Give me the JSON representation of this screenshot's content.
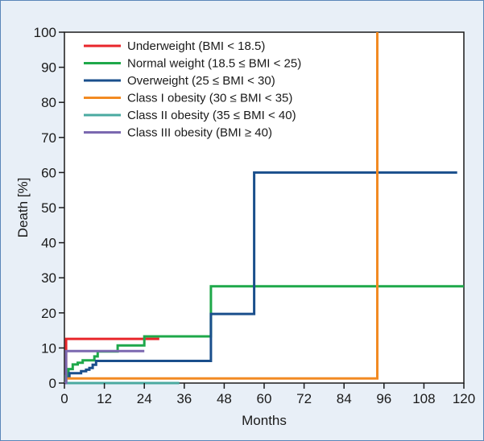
{
  "chart_data": {
    "type": "line",
    "step": true,
    "xlabel": "Months",
    "ylabel": "Death [%]",
    "xlim": [
      0,
      120
    ],
    "ylim": [
      0,
      100
    ],
    "xticks": [
      0,
      12,
      24,
      36,
      48,
      60,
      72,
      84,
      96,
      108,
      120
    ],
    "yticks": [
      0,
      10,
      20,
      30,
      40,
      50,
      60,
      70,
      80,
      90,
      100
    ],
    "grid": false,
    "legend_position": "top-left",
    "series": [
      {
        "name": "Underweight (BMI < 18.5)",
        "color": "#e8262b",
        "x": [
          0,
          0.5,
          0.5,
          24,
          24,
          28.5
        ],
        "y": [
          0,
          0,
          12.6,
          12.6,
          12.6,
          12.6
        ]
      },
      {
        "name": "Normal weight (18.5 ≤ BMI < 25)",
        "color": "#1ea84a",
        "x": [
          0,
          0.4,
          0.4,
          1.2,
          1.2,
          2.5,
          2.5,
          4,
          4,
          5.5,
          5.5,
          9,
          9,
          10,
          10,
          16,
          16,
          24,
          24,
          44,
          44,
          120
        ],
        "y": [
          0,
          0,
          2,
          2,
          4,
          4,
          5.3,
          5.3,
          5.8,
          5.8,
          6.5,
          6.5,
          7.6,
          7.6,
          9,
          9,
          10.7,
          10.7,
          13.3,
          13.3,
          27.6,
          27.6
        ]
      },
      {
        "name": "Overweight (25 ≤ BMI < 30)",
        "color": "#1a4f8c",
        "x": [
          0,
          0.5,
          0.5,
          1.5,
          1.5,
          5,
          5,
          6.5,
          6.5,
          7.5,
          7.5,
          8.5,
          8.5,
          9.5,
          9.5,
          44,
          44,
          57,
          57,
          118
        ],
        "y": [
          0,
          0,
          1.5,
          1.5,
          2.8,
          2.8,
          3.4,
          3.4,
          3.8,
          3.8,
          4.3,
          4.3,
          5.2,
          5.2,
          6.3,
          6.3,
          19.7,
          19.7,
          60,
          60
        ]
      },
      {
        "name": "Class I obesity (30 ≤ BMI < 35)",
        "color": "#f28a22",
        "x": [
          0,
          0.5,
          0.5,
          94,
          94
        ],
        "y": [
          0,
          0,
          1.3,
          1.3,
          100
        ]
      },
      {
        "name": "Class II obesity (35 ≤ BMI < 40)",
        "color": "#4aaaa0",
        "x": [
          0,
          34.5
        ],
        "y": [
          0,
          0
        ]
      },
      {
        "name": "Class III obesity (BMI ≥ 40)",
        "color": "#7b68b0",
        "x": [
          0,
          0.5,
          0.5,
          24
        ],
        "y": [
          0,
          0,
          9.1,
          9.1
        ]
      }
    ]
  }
}
